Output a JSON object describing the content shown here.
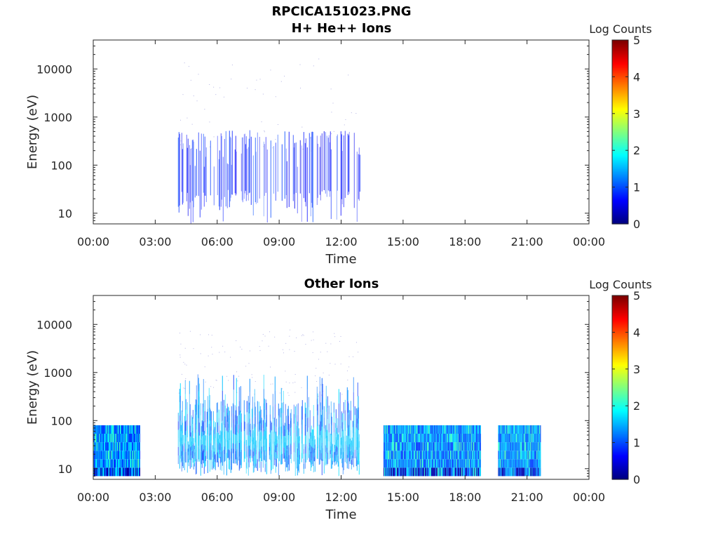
{
  "figure": {
    "title_line1": "RPCICA151023.PNG",
    "title_line2": "H+ He++ Ions",
    "background": "#ffffff"
  },
  "chart_data": [
    {
      "type": "heatmap",
      "title": "H+ He++ Ions",
      "xlabel": "Time",
      "ylabel": "Energy (eV)",
      "x_ticks": [
        "00:00",
        "03:00",
        "06:00",
        "09:00",
        "12:00",
        "15:00",
        "18:00",
        "21:00",
        "00:00"
      ],
      "x_range_hours": [
        0,
        24
      ],
      "y_scale": "log",
      "y_ticks": [
        10,
        100,
        1000,
        10000
      ],
      "ylim": [
        6,
        40000
      ],
      "colorbar": {
        "label": "Log Counts",
        "ticks": [
          0,
          1,
          2,
          3,
          4,
          5
        ],
        "range": [
          0,
          5
        ],
        "colormap": "jet"
      },
      "data_intervals_hours": [
        [
          4.1,
          12.9
        ]
      ],
      "typical_energy_range_eV": [
        10,
        300
      ],
      "typical_log_counts": 0.5
    },
    {
      "type": "heatmap",
      "title": "Other Ions",
      "xlabel": "Time",
      "ylabel": "Energy (eV)",
      "x_ticks": [
        "00:00",
        "03:00",
        "06:00",
        "09:00",
        "12:00",
        "15:00",
        "18:00",
        "21:00",
        "00:00"
      ],
      "x_range_hours": [
        0,
        24
      ],
      "y_scale": "log",
      "y_ticks": [
        10,
        100,
        1000,
        10000
      ],
      "ylim": [
        6,
        40000
      ],
      "colorbar": {
        "label": "Log Counts",
        "ticks": [
          0,
          1,
          2,
          3,
          4,
          5
        ],
        "range": [
          0,
          5
        ],
        "colormap": "jet"
      },
      "data_intervals_hours": [
        [
          0.0,
          2.25
        ],
        [
          4.1,
          12.9
        ],
        [
          14.05,
          18.75
        ],
        [
          19.6,
          21.65
        ]
      ],
      "typical_energy_range_eV": [
        7,
        80
      ],
      "typical_log_counts": 1.3
    }
  ]
}
